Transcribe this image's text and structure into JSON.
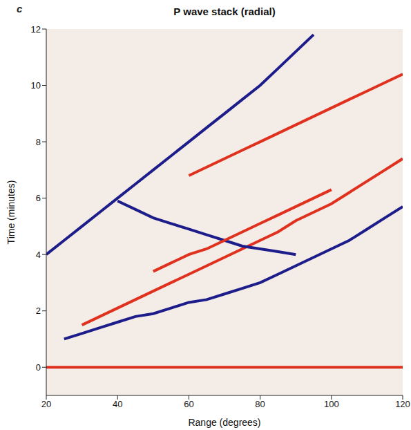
{
  "chart_data": {
    "type": "line",
    "panel_label": "c",
    "title": "P wave stack (radial)",
    "x_label": "Range (degrees)",
    "y_label": "Time (minutes)",
    "x": [
      20,
      25,
      30,
      35,
      40,
      45,
      50,
      55,
      60,
      65,
      70,
      75,
      80,
      85,
      90,
      95,
      100,
      105,
      110,
      115,
      120
    ],
    "series": [
      {
        "color": "#e0301e",
        "values": [
          0,
          0,
          0,
          0,
          0,
          0,
          0,
          0,
          0,
          0,
          0,
          0,
          0,
          0,
          0,
          0,
          0,
          0,
          0,
          0,
          0
        ]
      },
      {
        "color": "#1c1c8a",
        "values": [
          null,
          1.0,
          1.2,
          1.4,
          1.6,
          1.8,
          1.9,
          2.1,
          2.3,
          2.4,
          2.6,
          2.8,
          3.0,
          3.3,
          3.6,
          3.9,
          4.2,
          4.5,
          4.9,
          5.3,
          5.7
        ]
      },
      {
        "color": "#e0301e",
        "values": [
          null,
          null,
          1.5,
          1.8,
          2.1,
          2.4,
          2.7,
          3.0,
          3.3,
          3.6,
          3.9,
          4.2,
          4.5,
          4.8,
          5.2,
          5.5,
          5.8,
          6.2,
          6.6,
          7.0,
          7.4
        ]
      },
      {
        "color": "#1c1c8a",
        "values": [
          null,
          null,
          null,
          null,
          5.9,
          5.6,
          5.3,
          5.1,
          4.9,
          4.7,
          4.5,
          4.3,
          4.2,
          4.1,
          4.0,
          null,
          null,
          null,
          null,
          null,
          null
        ]
      },
      {
        "color": "#e0301e",
        "values": [
          null,
          null,
          null,
          null,
          null,
          null,
          3.4,
          3.7,
          4.0,
          4.2,
          4.5,
          4.8,
          5.1,
          5.4,
          5.7,
          6.0,
          6.3,
          null,
          null,
          null,
          null
        ]
      },
      {
        "color": "#1c1c8a",
        "values": [
          4.0,
          4.5,
          5.0,
          5.5,
          6.0,
          6.5,
          7.0,
          7.5,
          8.0,
          8.5,
          9.0,
          9.5,
          10.0,
          10.6,
          11.2,
          11.8,
          null,
          null,
          null,
          null,
          null
        ]
      },
      {
        "color": "#e0301e",
        "values": [
          null,
          null,
          null,
          null,
          null,
          null,
          null,
          null,
          6.8,
          7.1,
          7.4,
          7.7,
          8.0,
          8.3,
          8.6,
          8.9,
          9.2,
          9.5,
          9.8,
          10.1,
          10.4
        ]
      }
    ],
    "xlim": [
      20,
      120
    ],
    "xticks": [
      20,
      40,
      60,
      80,
      100,
      120
    ],
    "ylim": [
      -1,
      12
    ],
    "yticks": [
      0,
      2,
      4,
      6,
      8,
      10,
      12
    ],
    "grid": false
  }
}
